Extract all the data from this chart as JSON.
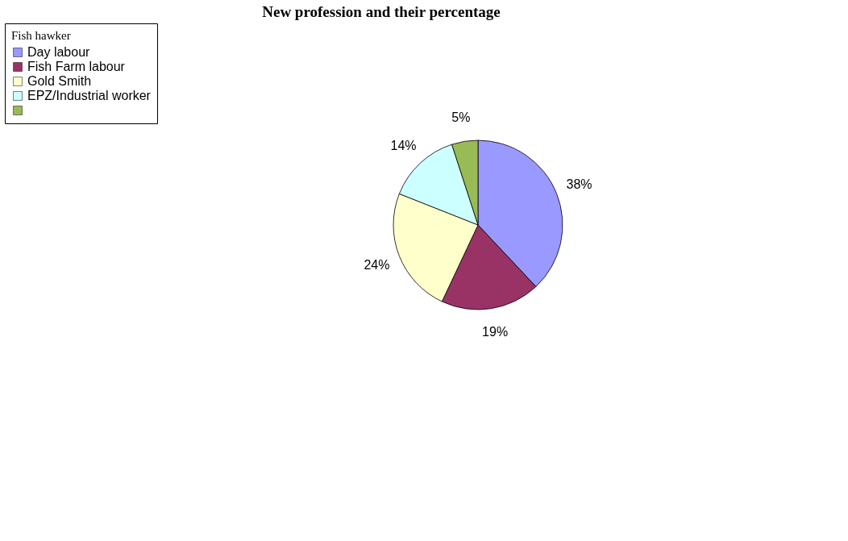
{
  "chart_data": {
    "type": "pie",
    "title": "New profession and their percentage",
    "legend_title": "Fish hawker",
    "categories": [
      "Day labour",
      "Fish Farm labour",
      "Gold Smith",
      "EPZ/Industrial worker",
      null
    ],
    "values": [
      38,
      19,
      24,
      14,
      5
    ],
    "colors": [
      "#9999ff",
      "#993366",
      "#ffffcc",
      "#ccffff",
      "#99bb55"
    ],
    "value_labels": [
      "38%",
      "19%",
      "24%",
      "14%",
      "5%"
    ],
    "legend": "left"
  }
}
